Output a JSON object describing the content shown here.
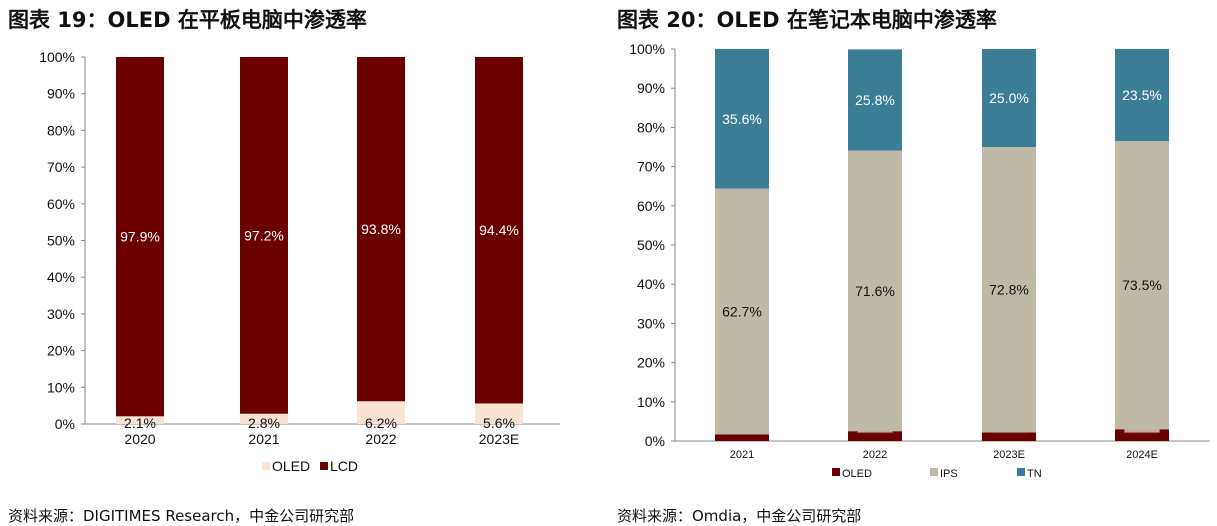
{
  "chart_data": [
    {
      "type": "bar",
      "stacked": true,
      "title": "图表 19：OLED 在平板电脑中渗透率",
      "source": "资料来源：DIGITIMES Research，中金公司研究部",
      "categories": [
        "2020",
        "2021",
        "2022",
        "2023E"
      ],
      "series": [
        {
          "name": "OLED",
          "values": [
            2.1,
            2.8,
            6.2,
            5.6
          ],
          "labels": [
            "2.1%",
            "2.8%",
            "6.2%",
            "5.6%"
          ],
          "color": "#fbe3d4"
        },
        {
          "name": "LCD",
          "values": [
            97.9,
            97.2,
            93.8,
            94.4
          ],
          "labels": [
            "97.9%",
            "97.2%",
            "93.8%",
            "94.4%"
          ],
          "color": "#6b0000"
        }
      ],
      "yticks": [
        "0%",
        "10%",
        "20%",
        "30%",
        "40%",
        "50%",
        "60%",
        "70%",
        "80%",
        "90%",
        "100%"
      ],
      "ylim": [
        0,
        100
      ],
      "legend": "bottom"
    },
    {
      "type": "bar",
      "stacked": true,
      "title": "图表 20：OLED 在笔记本电脑中渗透率",
      "source": "资料来源：Omdia，中金公司研究部",
      "categories": [
        "2021",
        "2022",
        "2023E",
        "2024E"
      ],
      "series": [
        {
          "name": "OLED",
          "values": [
            1.7,
            2.5,
            2.2,
            3.0
          ],
          "labels": [
            "1.7%",
            "2.5%",
            "2.2%",
            "3.0%"
          ],
          "color": "#6b0000"
        },
        {
          "name": "IPS",
          "values": [
            62.7,
            71.6,
            72.8,
            73.5
          ],
          "labels": [
            "62.7%",
            "71.6%",
            "72.8%",
            "73.5%"
          ],
          "color": "#bfbaa8"
        },
        {
          "name": "TN",
          "values": [
            35.6,
            25.8,
            25.0,
            23.5
          ],
          "labels": [
            "35.6%",
            "25.8%",
            "25.0%",
            "23.5%"
          ],
          "color": "#3a7d95"
        }
      ],
      "yticks": [
        "0%",
        "10%",
        "20%",
        "30%",
        "40%",
        "50%",
        "60%",
        "70%",
        "80%",
        "90%",
        "100%"
      ],
      "ylim": [
        0,
        100
      ],
      "legend": "bottom"
    }
  ]
}
